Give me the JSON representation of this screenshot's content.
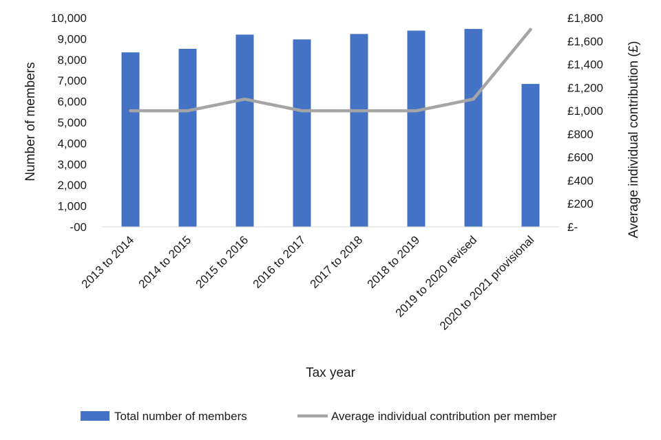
{
  "chart_data": {
    "type": "bar",
    "title": "",
    "xlabel": "Tax year",
    "ylabel": "Number of members",
    "y2label": "Average individual contribution (£)",
    "categories": [
      "2013 to 2014",
      "2014 to 2015",
      "2015 to 2016",
      "2016 to 2017",
      "2017 to 2018",
      "2018 to 2019",
      "2019 to 2020 revised",
      "2020 to 2021 provisional"
    ],
    "ylim": [
      0,
      10000
    ],
    "y2lim": [
      0,
      1800
    ],
    "yticks": [
      0,
      1000,
      2000,
      3000,
      4000,
      5000,
      6000,
      7000,
      8000,
      9000,
      10000
    ],
    "ytick_labels": [
      "-00",
      "1,000",
      "2,000",
      "3,000",
      "4,000",
      "5,000",
      "6,000",
      "7,000",
      "8,000",
      "9,000",
      "10,000"
    ],
    "y2ticks": [
      0,
      200,
      400,
      600,
      800,
      1000,
      1200,
      1400,
      1600,
      1800
    ],
    "y2tick_labels": [
      "£-",
      "£200",
      "£400",
      "£600",
      "£800",
      "£1,000",
      "£1,200",
      "£1,400",
      "£1,600",
      "£1,800"
    ],
    "series": [
      {
        "name": "Total number of members",
        "type": "bar",
        "axis": "left",
        "color": "#4472C4",
        "values": [
          8350,
          8520,
          9200,
          8970,
          9230,
          9390,
          9470,
          6840
        ]
      },
      {
        "name": "Average individual contribution per member",
        "type": "line",
        "axis": "right",
        "color": "#A5A5A5",
        "values": [
          1000,
          1000,
          1100,
          1000,
          1000,
          1000,
          1100,
          1700
        ]
      }
    ],
    "legend_position": "bottom",
    "grid": false
  }
}
